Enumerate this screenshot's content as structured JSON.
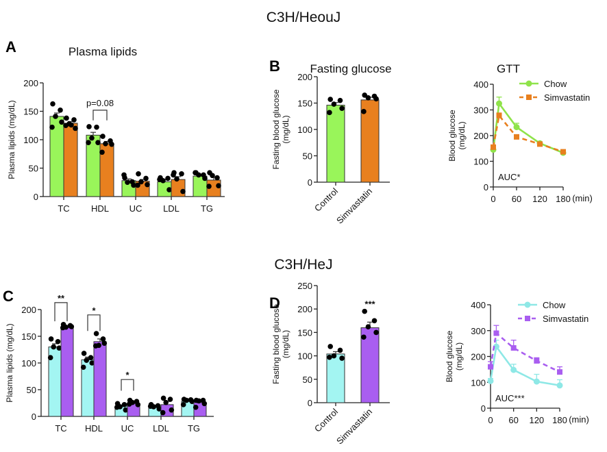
{
  "titles": {
    "top": "C3H/HeouJ",
    "bottom": "C3H/HeJ"
  },
  "panel_labels": {
    "A": "A",
    "B": "B",
    "C": "C",
    "D": "D"
  },
  "panel_titles": {
    "A": "Plasma lipids",
    "B": "Fasting glucose",
    "GTT": "GTT"
  },
  "colors": {
    "green": "#99f55a",
    "orange": "#e8801f",
    "cyan": "#a3f5f2",
    "purple": "#a95ef0",
    "dot": "#000000",
    "green_line": "#8fe34a",
    "cyan_line": "#8ee8e6"
  },
  "chart_data": [
    {
      "id": "A",
      "type": "bar",
      "title": "Plasma lipids",
      "ylabel": "Plasma lipids (mg/dL)",
      "ylim": [
        0,
        200
      ],
      "yticks": [
        "0",
        "50",
        "100",
        "150",
        "200"
      ],
      "categories": [
        "TC",
        "HDL",
        "UC",
        "LDL",
        "TG"
      ],
      "series": [
        {
          "name": "Chow",
          "color": "#99f55a",
          "values": [
            141,
            108,
            28,
            26,
            36
          ],
          "sem": [
            6,
            5,
            3,
            4,
            2
          ],
          "points": [
            [
              163,
              152,
              141,
              131,
              122
            ],
            [
              123,
              122,
              103,
              95,
              95
            ],
            [
              33,
              26,
              25,
              20,
              38
            ],
            [
              33,
              32,
              28,
              12,
              30
            ],
            [
              42,
              38,
              38,
              32,
              42
            ]
          ]
        },
        {
          "name": "Simvastatin",
          "color": "#e8801f",
          "values": [
            129,
            93,
            27,
            30,
            29
          ],
          "sem": [
            3,
            4,
            3,
            5,
            5
          ],
          "points": [
            [
              138,
              135,
              128,
              120,
              125,
              126
            ],
            [
              106,
              98,
              93,
              92,
              78
            ],
            [
              40,
              32,
              26,
              21,
              20
            ],
            [
              42,
              40,
              31,
              9,
              38
            ],
            [
              42,
              33,
              37,
              19,
              18
            ]
          ]
        }
      ],
      "annotations": [
        {
          "category": "HDL",
          "text": "p=0.08",
          "y": 152,
          "legs": 134
        }
      ]
    },
    {
      "id": "B",
      "type": "bar",
      "title": "Fasting glucose",
      "ylabel": [
        "Fasting blood glucose",
        "(mg/dL)"
      ],
      "ylim": [
        0,
        200
      ],
      "yticks": [
        "0",
        "50",
        "100",
        "150",
        "200"
      ],
      "categories": [
        "Control",
        "Simvastatin"
      ],
      "values": [
        146,
        156
      ],
      "sem": [
        5,
        5
      ],
      "colors": [
        "#99f55a",
        "#e8801f"
      ],
      "points": [
        [
          157,
          155,
          148,
          140,
          132
        ],
        [
          165,
          163,
          160,
          158,
          134
        ]
      ]
    },
    {
      "id": "GTT1",
      "type": "line",
      "title": "GTT",
      "ylabel": [
        "Blood glucose",
        "(mg/dL)"
      ],
      "ylim": [
        0,
        400
      ],
      "yticks": [
        "0",
        "100",
        "200",
        "300",
        "400"
      ],
      "xlim": [
        0,
        180
      ],
      "xticks": [
        "0",
        "60",
        "120",
        "180"
      ],
      "xunit": "(min)",
      "x": [
        0,
        15,
        60,
        120,
        180
      ],
      "series": [
        {
          "name": "Chow",
          "color": "#8fe34a",
          "marker": "circle",
          "dash": false,
          "values": [
            145,
            325,
            233,
            170,
            133
          ],
          "sem": [
            8,
            25,
            15,
            5,
            5
          ]
        },
        {
          "name": "Simvastatin",
          "color": "#e8801f",
          "marker": "square",
          "dash": true,
          "values": [
            155,
            278,
            195,
            167,
            137
          ],
          "sem": [
            8,
            10,
            6,
            5,
            5
          ]
        }
      ],
      "annotation": "AUC*"
    },
    {
      "id": "C",
      "type": "bar",
      "ylabel": "Plasma lipids (mg/dL)",
      "ylim": [
        0,
        200
      ],
      "yticks": [
        "0",
        "50",
        "100",
        "150",
        "200"
      ],
      "categories": [
        "TC",
        "HDL",
        "UC",
        "LDL",
        "TG"
      ],
      "series": [
        {
          "name": "Chow",
          "color": "#a3f5f2",
          "values": [
            130,
            106,
            19,
            18,
            28
          ],
          "sem": [
            6,
            5,
            2,
            2,
            2
          ],
          "points": [
            [
              145,
              140,
              130,
              128,
              110
            ],
            [
              118,
              110,
              105,
              100,
              92
            ],
            [
              24,
              22,
              18,
              12,
              17
            ],
            [
              22,
              20,
              18,
              14,
              19
            ],
            [
              32,
              31,
              30,
              28,
              22
            ]
          ]
        },
        {
          "name": "Simvastatin",
          "color": "#a95ef0",
          "values": [
            167,
            140,
            24,
            22,
            26
          ],
          "sem": [
            2,
            5,
            2,
            6,
            3
          ],
          "points": [
            [
              172,
              170,
              167,
              168,
              166
            ],
            [
              155,
              145,
              133,
              137,
              132
            ],
            [
              30,
              28,
              26,
              22,
              23
            ],
            [
              34,
              32,
              26,
              12,
              7
            ],
            [
              30,
              30,
              29,
              24,
              17
            ]
          ]
        }
      ],
      "annotations": [
        {
          "category": "TC",
          "text": "**",
          "y": 213,
          "legs": 178
        },
        {
          "category": "HDL",
          "text": "*",
          "y": 190,
          "legs": 160
        },
        {
          "category": "UC",
          "text": "*",
          "y": 69,
          "legs": 48
        }
      ]
    },
    {
      "id": "D",
      "type": "bar",
      "ylabel": [
        "Fasting blood glucose",
        "(mg/dL)"
      ],
      "ylim": [
        0,
        250
      ],
      "yticks": [
        "0",
        "50",
        "100",
        "150",
        "200",
        "250"
      ],
      "categories": [
        "Control",
        "Simvastatin"
      ],
      "values": [
        104,
        160
      ],
      "sem": [
        5,
        12
      ],
      "colors": [
        "#a3f5f2",
        "#a95ef0"
      ],
      "points": [
        [
          120,
          112,
          100,
          95,
          97
        ],
        [
          195,
          175,
          162,
          150,
          140
        ]
      ],
      "significance": "***"
    },
    {
      "id": "GTT2",
      "type": "line",
      "ylabel": [
        "Blood glucose",
        "(mg/dL)"
      ],
      "ylim": [
        0,
        400
      ],
      "yticks": [
        "0",
        "100",
        "200",
        "300",
        "400"
      ],
      "xlim": [
        0,
        180
      ],
      "xticks": [
        "0",
        "60",
        "120",
        "180"
      ],
      "xunit": "(min)",
      "x": [
        0,
        15,
        60,
        120,
        180
      ],
      "series": [
        {
          "name": "Chow",
          "color": "#8ee8e6",
          "marker": "circle",
          "dash": false,
          "values": [
            105,
            238,
            148,
            103,
            88
          ],
          "sem": [
            10,
            25,
            22,
            28,
            22
          ]
        },
        {
          "name": "Simvastatin",
          "color": "#a95ef0",
          "marker": "square",
          "dash": true,
          "values": [
            160,
            290,
            233,
            183,
            140
          ],
          "sem": [
            20,
            30,
            30,
            12,
            20
          ]
        }
      ],
      "annotation": "AUC***"
    }
  ]
}
